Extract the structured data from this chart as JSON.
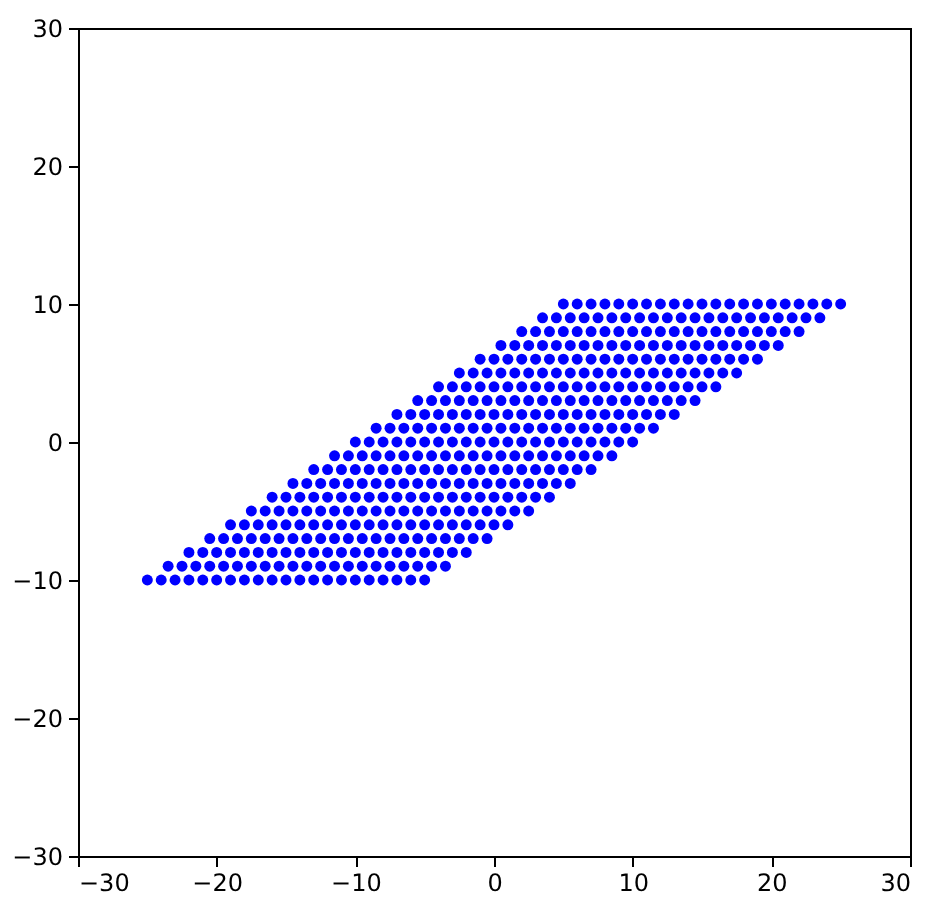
{
  "chart_data": {
    "type": "scatter",
    "xlim": [
      -30,
      30
    ],
    "ylim": [
      -30,
      30
    ],
    "xticks": [
      -30,
      -20,
      -10,
      0,
      10,
      20,
      30
    ],
    "yticks": [
      -30,
      -20,
      -10,
      0,
      10,
      20,
      30
    ],
    "grid": false,
    "legend": false,
    "marker": "circle",
    "series": [
      {
        "color": "#0000ff",
        "x": [
          -25,
          -24,
          -23,
          -22,
          -21,
          -20,
          -19,
          -18,
          -17,
          -16,
          -15,
          -14,
          -13,
          -12,
          -11,
          -10,
          -9,
          -8,
          -7,
          -6,
          -5
        ],
        "values": [
          -10,
          -10,
          -10,
          -10,
          -10,
          -10,
          -10,
          -10,
          -10,
          -10,
          -10,
          -10,
          -10,
          -10,
          -10,
          -10,
          -10,
          -10,
          -10,
          -10,
          -10
        ]
      },
      {
        "color": "#0000ff",
        "x": [
          -23.5,
          -22.5,
          -21.5,
          -20.5,
          -19.5,
          -18.5,
          -17.5,
          -16.5,
          -15.5,
          -14.5,
          -13.5,
          -12.5,
          -11.5,
          -10.5,
          -9.5,
          -8.5,
          -7.5,
          -6.5,
          -5.5,
          -4.5,
          -3.5
        ],
        "values": [
          -9,
          -9,
          -9,
          -9,
          -9,
          -9,
          -9,
          -9,
          -9,
          -9,
          -9,
          -9,
          -9,
          -9,
          -9,
          -9,
          -9,
          -9,
          -9,
          -9,
          -9
        ]
      },
      {
        "color": "#0000ff",
        "x": [
          -22,
          -21,
          -20,
          -19,
          -18,
          -17,
          -16,
          -15,
          -14,
          -13,
          -12,
          -11,
          -10,
          -9,
          -8,
          -7,
          -6,
          -5,
          -4,
          -3,
          -2
        ],
        "values": [
          -8,
          -8,
          -8,
          -8,
          -8,
          -8,
          -8,
          -8,
          -8,
          -8,
          -8,
          -8,
          -8,
          -8,
          -8,
          -8,
          -8,
          -8,
          -8,
          -8,
          -8
        ]
      },
      {
        "color": "#0000ff",
        "x": [
          -20.5,
          -19.5,
          -18.5,
          -17.5,
          -16.5,
          -15.5,
          -14.5,
          -13.5,
          -12.5,
          -11.5,
          -10.5,
          -9.5,
          -8.5,
          -7.5,
          -6.5,
          -5.5,
          -4.5,
          -3.5,
          -2.5,
          -1.5,
          -0.5
        ],
        "values": [
          -7,
          -7,
          -7,
          -7,
          -7,
          -7,
          -7,
          -7,
          -7,
          -7,
          -7,
          -7,
          -7,
          -7,
          -7,
          -7,
          -7,
          -7,
          -7,
          -7,
          -7
        ]
      },
      {
        "color": "#0000ff",
        "x": [
          -19,
          -18,
          -17,
          -16,
          -15,
          -14,
          -13,
          -12,
          -11,
          -10,
          -9,
          -8,
          -7,
          -6,
          -5,
          -4,
          -3,
          -2,
          -1,
          0,
          1
        ],
        "values": [
          -6,
          -6,
          -6,
          -6,
          -6,
          -6,
          -6,
          -6,
          -6,
          -6,
          -6,
          -6,
          -6,
          -6,
          -6,
          -6,
          -6,
          -6,
          -6,
          -6,
          -6
        ]
      },
      {
        "color": "#0000ff",
        "x": [
          -17.5,
          -16.5,
          -15.5,
          -14.5,
          -13.5,
          -12.5,
          -11.5,
          -10.5,
          -9.5,
          -8.5,
          -7.5,
          -6.5,
          -5.5,
          -4.5,
          -3.5,
          -2.5,
          -1.5,
          -0.5,
          0.5,
          1.5,
          2.5
        ],
        "values": [
          -5,
          -5,
          -5,
          -5,
          -5,
          -5,
          -5,
          -5,
          -5,
          -5,
          -5,
          -5,
          -5,
          -5,
          -5,
          -5,
          -5,
          -5,
          -5,
          -5,
          -5
        ]
      },
      {
        "color": "#0000ff",
        "x": [
          -16,
          -15,
          -14,
          -13,
          -12,
          -11,
          -10,
          -9,
          -8,
          -7,
          -6,
          -5,
          -4,
          -3,
          -2,
          -1,
          0,
          1,
          2,
          3,
          4
        ],
        "values": [
          -4,
          -4,
          -4,
          -4,
          -4,
          -4,
          -4,
          -4,
          -4,
          -4,
          -4,
          -4,
          -4,
          -4,
          -4,
          -4,
          -4,
          -4,
          -4,
          -4,
          -4
        ]
      },
      {
        "color": "#0000ff",
        "x": [
          -14.5,
          -13.5,
          -12.5,
          -11.5,
          -10.5,
          -9.5,
          -8.5,
          -7.5,
          -6.5,
          -5.5,
          -4.5,
          -3.5,
          -2.5,
          -1.5,
          -0.5,
          0.5,
          1.5,
          2.5,
          3.5,
          4.5,
          5.5
        ],
        "values": [
          -3,
          -3,
          -3,
          -3,
          -3,
          -3,
          -3,
          -3,
          -3,
          -3,
          -3,
          -3,
          -3,
          -3,
          -3,
          -3,
          -3,
          -3,
          -3,
          -3,
          -3
        ]
      },
      {
        "color": "#0000ff",
        "x": [
          -13,
          -12,
          -11,
          -10,
          -9,
          -8,
          -7,
          -6,
          -5,
          -4,
          -3,
          -2,
          -1,
          0,
          1,
          2,
          3,
          4,
          5,
          6,
          7
        ],
        "values": [
          -2,
          -2,
          -2,
          -2,
          -2,
          -2,
          -2,
          -2,
          -2,
          -2,
          -2,
          -2,
          -2,
          -2,
          -2,
          -2,
          -2,
          -2,
          -2,
          -2,
          -2
        ]
      },
      {
        "color": "#0000ff",
        "x": [
          -11.5,
          -10.5,
          -9.5,
          -8.5,
          -7.5,
          -6.5,
          -5.5,
          -4.5,
          -3.5,
          -2.5,
          -1.5,
          -0.5,
          0.5,
          1.5,
          2.5,
          3.5,
          4.5,
          5.5,
          6.5,
          7.5,
          8.5
        ],
        "values": [
          -1,
          -1,
          -1,
          -1,
          -1,
          -1,
          -1,
          -1,
          -1,
          -1,
          -1,
          -1,
          -1,
          -1,
          -1,
          -1,
          -1,
          -1,
          -1,
          -1,
          -1
        ]
      },
      {
        "color": "#0000ff",
        "x": [
          -10,
          -9,
          -8,
          -7,
          -6,
          -5,
          -4,
          -3,
          -2,
          -1,
          0,
          1,
          2,
          3,
          4,
          5,
          6,
          7,
          8,
          9,
          10
        ],
        "values": [
          0,
          0,
          0,
          0,
          0,
          0,
          0,
          0,
          0,
          0,
          0,
          0,
          0,
          0,
          0,
          0,
          0,
          0,
          0,
          0,
          0
        ]
      },
      {
        "color": "#0000ff",
        "x": [
          -8.5,
          -7.5,
          -6.5,
          -5.5,
          -4.5,
          -3.5,
          -2.5,
          -1.5,
          -0.5,
          0.5,
          1.5,
          2.5,
          3.5,
          4.5,
          5.5,
          6.5,
          7.5,
          8.5,
          9.5,
          10.5,
          11.5
        ],
        "values": [
          1,
          1,
          1,
          1,
          1,
          1,
          1,
          1,
          1,
          1,
          1,
          1,
          1,
          1,
          1,
          1,
          1,
          1,
          1,
          1,
          1
        ]
      },
      {
        "color": "#0000ff",
        "x": [
          -7,
          -6,
          -5,
          -4,
          -3,
          -2,
          -1,
          0,
          1,
          2,
          3,
          4,
          5,
          6,
          7,
          8,
          9,
          10,
          11,
          12,
          13
        ],
        "values": [
          2,
          2,
          2,
          2,
          2,
          2,
          2,
          2,
          2,
          2,
          2,
          2,
          2,
          2,
          2,
          2,
          2,
          2,
          2,
          2,
          2
        ]
      },
      {
        "color": "#0000ff",
        "x": [
          -5.5,
          -4.5,
          -3.5,
          -2.5,
          -1.5,
          -0.5,
          0.5,
          1.5,
          2.5,
          3.5,
          4.5,
          5.5,
          6.5,
          7.5,
          8.5,
          9.5,
          10.5,
          11.5,
          12.5,
          13.5,
          14.5
        ],
        "values": [
          3,
          3,
          3,
          3,
          3,
          3,
          3,
          3,
          3,
          3,
          3,
          3,
          3,
          3,
          3,
          3,
          3,
          3,
          3,
          3,
          3
        ]
      },
      {
        "color": "#0000ff",
        "x": [
          -4,
          -3,
          -2,
          -1,
          0,
          1,
          2,
          3,
          4,
          5,
          6,
          7,
          8,
          9,
          10,
          11,
          12,
          13,
          14,
          15,
          16
        ],
        "values": [
          4,
          4,
          4,
          4,
          4,
          4,
          4,
          4,
          4,
          4,
          4,
          4,
          4,
          4,
          4,
          4,
          4,
          4,
          4,
          4,
          4
        ]
      },
      {
        "color": "#0000ff",
        "x": [
          -2.5,
          -1.5,
          -0.5,
          0.5,
          1.5,
          2.5,
          3.5,
          4.5,
          5.5,
          6.5,
          7.5,
          8.5,
          9.5,
          10.5,
          11.5,
          12.5,
          13.5,
          14.5,
          15.5,
          16.5,
          17.5
        ],
        "values": [
          5,
          5,
          5,
          5,
          5,
          5,
          5,
          5,
          5,
          5,
          5,
          5,
          5,
          5,
          5,
          5,
          5,
          5,
          5,
          5,
          5
        ]
      },
      {
        "color": "#0000ff",
        "x": [
          -1,
          0,
          1,
          2,
          3,
          4,
          5,
          6,
          7,
          8,
          9,
          10,
          11,
          12,
          13,
          14,
          15,
          16,
          17,
          18,
          19
        ],
        "values": [
          6,
          6,
          6,
          6,
          6,
          6,
          6,
          6,
          6,
          6,
          6,
          6,
          6,
          6,
          6,
          6,
          6,
          6,
          6,
          6,
          6
        ]
      },
      {
        "color": "#0000ff",
        "x": [
          0.5,
          1.5,
          2.5,
          3.5,
          4.5,
          5.5,
          6.5,
          7.5,
          8.5,
          9.5,
          10.5,
          11.5,
          12.5,
          13.5,
          14.5,
          15.5,
          16.5,
          17.5,
          18.5,
          19.5,
          20.5
        ],
        "values": [
          7,
          7,
          7,
          7,
          7,
          7,
          7,
          7,
          7,
          7,
          7,
          7,
          7,
          7,
          7,
          7,
          7,
          7,
          7,
          7,
          7
        ]
      },
      {
        "color": "#0000ff",
        "x": [
          2,
          3,
          4,
          5,
          6,
          7,
          8,
          9,
          10,
          11,
          12,
          13,
          14,
          15,
          16,
          17,
          18,
          19,
          20,
          21,
          22
        ],
        "values": [
          8,
          8,
          8,
          8,
          8,
          8,
          8,
          8,
          8,
          8,
          8,
          8,
          8,
          8,
          8,
          8,
          8,
          8,
          8,
          8,
          8
        ]
      },
      {
        "color": "#0000ff",
        "x": [
          3.5,
          4.5,
          5.5,
          6.5,
          7.5,
          8.5,
          9.5,
          10.5,
          11.5,
          12.5,
          13.5,
          14.5,
          15.5,
          16.5,
          17.5,
          18.5,
          19.5,
          20.5,
          21.5,
          22.5,
          23.5
        ],
        "values": [
          9,
          9,
          9,
          9,
          9,
          9,
          9,
          9,
          9,
          9,
          9,
          9,
          9,
          9,
          9,
          9,
          9,
          9,
          9,
          9,
          9
        ]
      },
      {
        "color": "#0000ff",
        "x": [
          5,
          6,
          7,
          8,
          9,
          10,
          11,
          12,
          13,
          14,
          15,
          16,
          17,
          18,
          19,
          20,
          21,
          22,
          23,
          24,
          25
        ],
        "values": [
          10,
          10,
          10,
          10,
          10,
          10,
          10,
          10,
          10,
          10,
          10,
          10,
          10,
          10,
          10,
          10,
          10,
          10,
          10,
          10,
          10
        ]
      }
    ]
  }
}
